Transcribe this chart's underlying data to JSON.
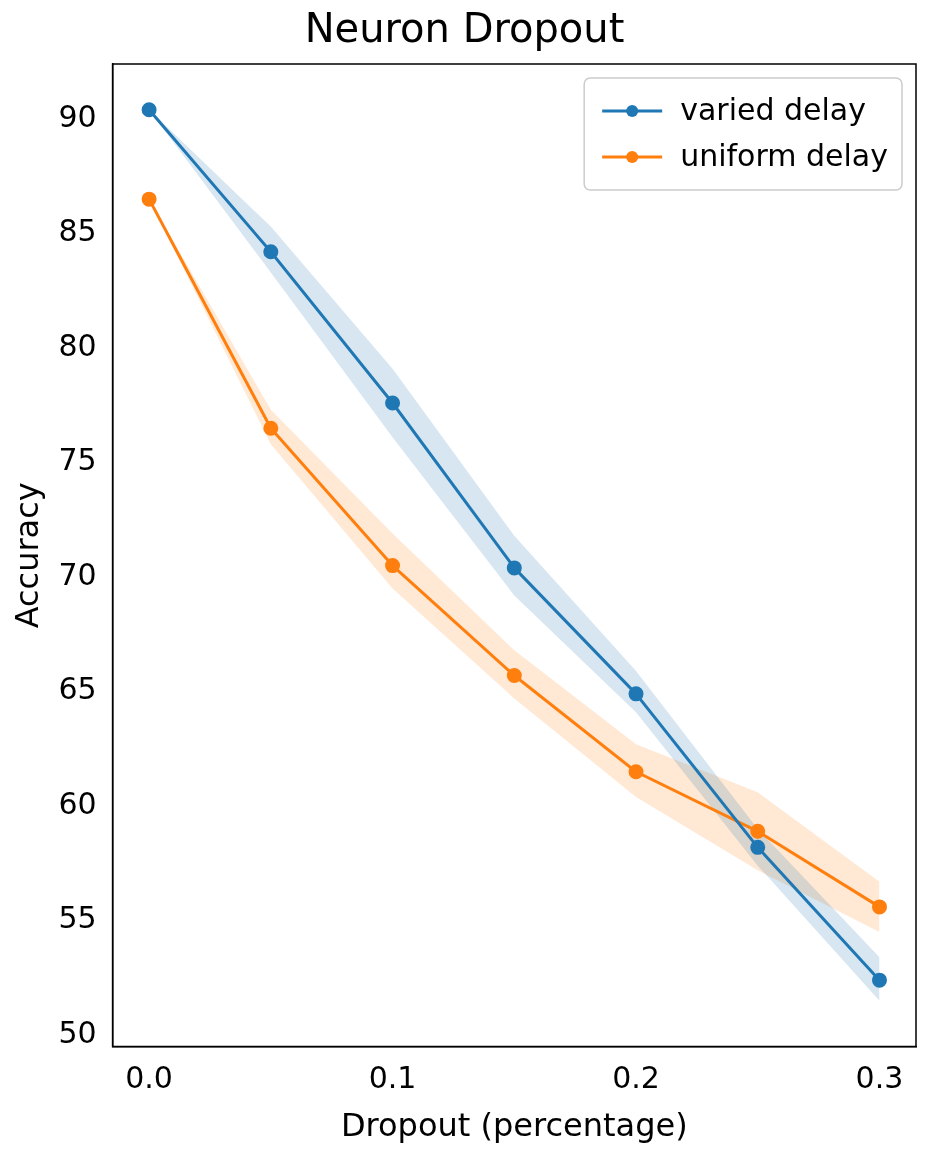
{
  "chart_data": {
    "type": "line",
    "title": "Neuron Dropout",
    "xlabel": "Dropout (percentage)",
    "ylabel": "Accuracy",
    "x": [
      0,
      0.05,
      0.1,
      0.15,
      0.2,
      0.25,
      0.3
    ],
    "series": [
      {
        "name": "varied delay",
        "color": "#1f77b4",
        "values": [
          90.4,
          84.2,
          77.6,
          70.4,
          64.9,
          58.2,
          52.4
        ],
        "lower": [
          90.4,
          83.3,
          76.1,
          69.2,
          64.1,
          57.4,
          51.5
        ],
        "upper": [
          90.4,
          85.3,
          79.1,
          71.8,
          65.9,
          59.0,
          53.4
        ]
      },
      {
        "name": "uniform delay",
        "color": "#ff7f0e",
        "values": [
          86.5,
          76.5,
          70.5,
          65.7,
          61.5,
          58.9,
          55.6
        ],
        "lower": [
          86.5,
          75.8,
          69.5,
          64.7,
          60.4,
          57.2,
          54.5
        ],
        "upper": [
          86.5,
          77.3,
          71.9,
          66.8,
          62.7,
          60.6,
          56.7
        ]
      }
    ],
    "xlim": [
      -0.015,
      0.315
    ],
    "xticks": [
      {
        "value": 0,
        "label": "0.0"
      },
      0.1,
      0.2,
      0.3
    ],
    "ylim": [
      49.5,
      92.4
    ],
    "yticks": [
      50,
      55,
      60,
      65,
      70,
      75,
      80,
      85,
      90
    ],
    "grid": false,
    "legend": "top right",
    "marker": "circle",
    "line_style": "solid"
  }
}
